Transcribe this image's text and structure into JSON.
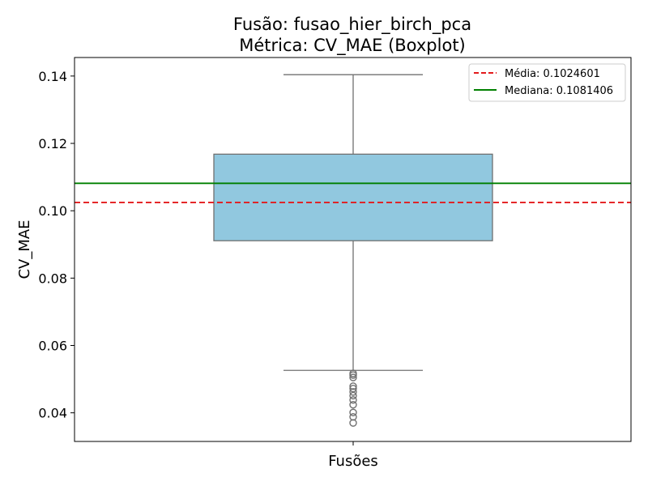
{
  "chart_data": {
    "type": "boxplot",
    "title_line1": "Fusão: fusao_hier_birch_pca",
    "title_line2": "Métrica: CV_MAE (Boxplot)",
    "xlabel": "Fusões",
    "ylabel": "CV_MAE",
    "ylim": [
      0.0315,
      0.1455
    ],
    "yticks": [
      0.04,
      0.06,
      0.08,
      0.1,
      0.12,
      0.14
    ],
    "ytick_labels": [
      "0.04",
      "0.06",
      "0.08",
      "0.10",
      "0.12",
      "0.14"
    ],
    "grid": false,
    "legend_position": "top-right",
    "box": {
      "whisker_low": 0.0526,
      "q1": 0.0911,
      "median": 0.1081,
      "q3": 0.1168,
      "whisker_high": 0.1404,
      "outliers": [
        0.0517,
        0.0512,
        0.0505,
        0.0479,
        0.0472,
        0.0462,
        0.0451,
        0.0438,
        0.0424,
        0.0401,
        0.0388,
        0.037
      ]
    },
    "reference_lines": [
      {
        "label": "Média: 0.1024601",
        "value": 0.1024601,
        "color": "#e31a1c",
        "style": "dashed"
      },
      {
        "label": "Mediana: 0.1081406",
        "value": 0.1081406,
        "color": "#008000",
        "style": "solid"
      }
    ],
    "colors": {
      "box_fill": "#91c8df",
      "box_edge": "#707070"
    }
  }
}
